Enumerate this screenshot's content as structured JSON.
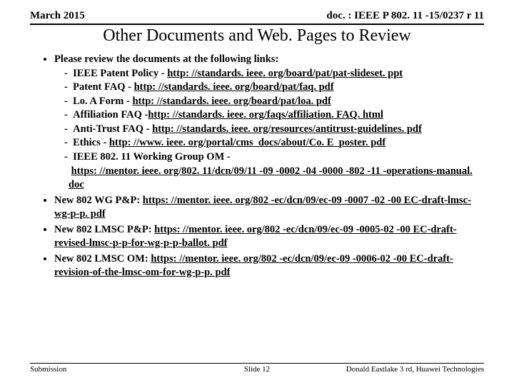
{
  "header": {
    "date": "March 2015",
    "docref": "doc. : IEEE P 802. 11 -15/0237 r 11"
  },
  "title": "Other Documents and Web. Pages to Review",
  "bullets": [
    {
      "lead": "Please review the documents at the following links:",
      "subs": [
        {
          "label": "IEEE Patent Policy",
          "sep": " - ",
          "url": "http: //standards. ieee. org/board/pat/pat-slideset. ppt"
        },
        {
          "label": "Patent FAQ",
          "sep": " - ",
          "url": "http: //standards. ieee. org/board/pat/faq. pdf"
        },
        {
          "label": "Lo. A Form",
          "sep": " - ",
          "url": "http: //standards. ieee. org/board/pat/loa. pdf"
        },
        {
          "label": "Affiliation FAQ",
          "sep": " -",
          "url": "http: //standards. ieee. org/faqs/affiliation. FAQ. html"
        },
        {
          "label": "Anti-Trust FAQ",
          "sep": " - ",
          "url": "http: //standards. ieee. org/resources/antitrust-guidelines. pdf"
        },
        {
          "label": "Ethics",
          "sep": " - ",
          "url": "http: //www. ieee. org/portal/cms_docs/about/Co. E_poster. pdf"
        },
        {
          "label": "IEEE 802. 11 Working Group OM",
          "sep": " -",
          "url": "https: //mentor. ieee. org/802. 11/dcn/09/11 -09 -0002 -04 -0000 -802 -11 -operations-manual. doc"
        }
      ]
    },
    {
      "lead": "New 802 WG P&P: ",
      "url": "https: //mentor. ieee. org/802 -ec/dcn/09/ec-09 -0007 -02 -00 EC-draft-lmsc-wg-p-p. pdf"
    },
    {
      "lead": "New 802 LMSC P&P: ",
      "url": "https: //mentor. ieee. org/802 -ec/dcn/09/ec-09 -0005-02 -00 EC-draft-revised-lmsc-p-p-for-wg-p-p-ballot. pdf"
    },
    {
      "lead": "New 802 LMSC OM: ",
      "url": "https: //mentor. ieee. org/802 -ec/dcn/09/ec-09 -0006-02 -00 EC-draft-revision-of-the-lmsc-om-for-wg-p-p. pdf"
    }
  ],
  "footer": {
    "left": "Submission",
    "center": "Slide 12",
    "right": "Donald Eastlake 3 rd, Huawei Technologies"
  }
}
